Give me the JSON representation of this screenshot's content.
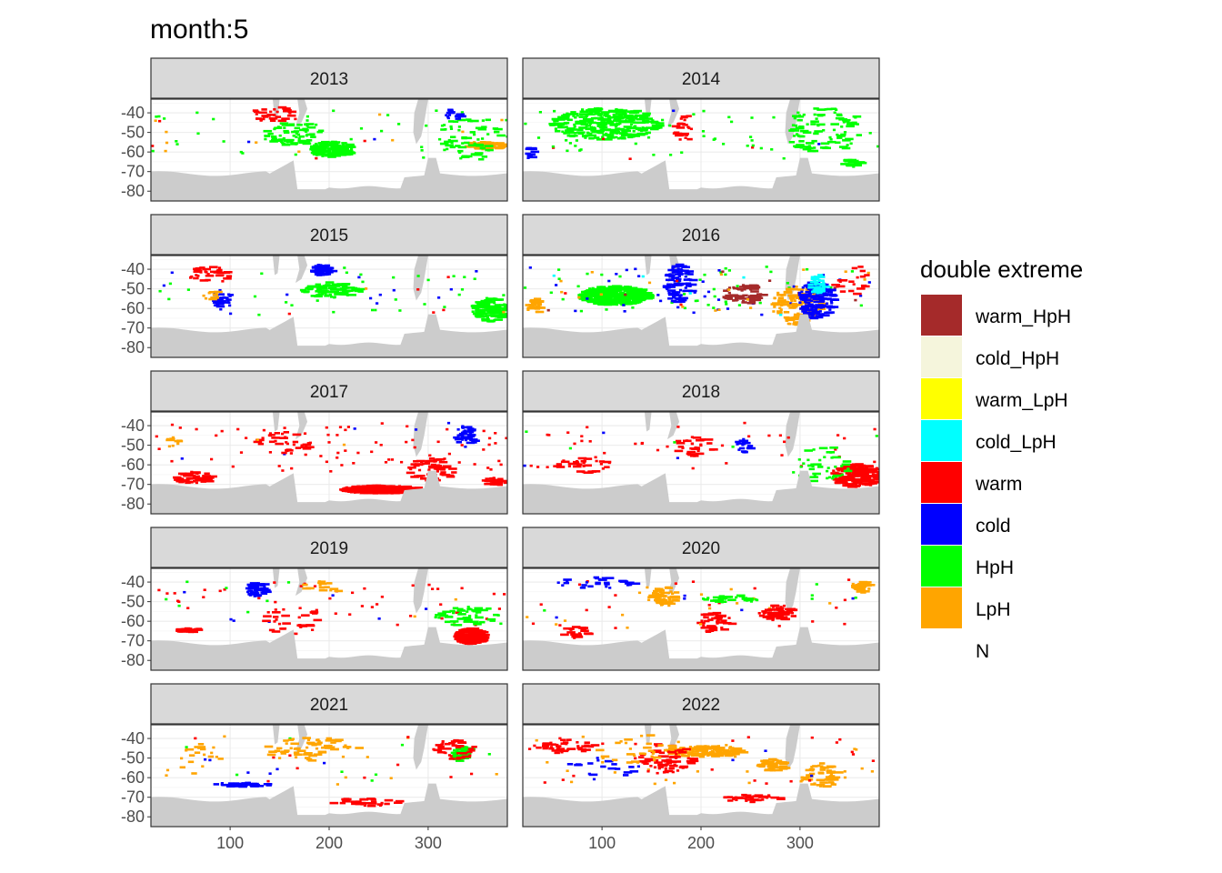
{
  "chart_data": {
    "type": "heatmap",
    "title": "month:5",
    "xlabel": "",
    "ylabel": "",
    "x_ticks": [
      100,
      200,
      300
    ],
    "y_ticks": [
      -40,
      -50,
      -60,
      -70,
      -80
    ],
    "y_tick_labels": [
      "-40",
      "-50",
      "-60",
      "-70",
      "-80"
    ],
    "xlim": [
      20,
      380
    ],
    "ylim": [
      -85,
      -33
    ],
    "grid": true,
    "legend_position": "right",
    "legend": {
      "title": "double extreme",
      "entries": [
        {
          "label": "warm_HpH",
          "color": "#A52A2A"
        },
        {
          "label": "cold_HpH",
          "color": "#F5F5DC"
        },
        {
          "label": "warm_LpH",
          "color": "#FFFF00"
        },
        {
          "label": "cold_LpH",
          "color": "#00FFFF"
        },
        {
          "label": "warm",
          "color": "#FF0000"
        },
        {
          "label": "cold",
          "color": "#0000FF"
        },
        {
          "label": "HpH",
          "color": "#00FF00"
        },
        {
          "label": "LpH",
          "color": "#FFA500"
        },
        {
          "label": "N",
          "color": "#FFFFFF"
        }
      ]
    },
    "land_color": "#CCCCCC",
    "panels": [
      {
        "year": "2013",
        "blobs": [
          {
            "cat": "HpH",
            "lon": 200,
            "lat": -58,
            "rx": 22,
            "ry": 4,
            "n": 140
          },
          {
            "cat": "HpH",
            "lon": 160,
            "lat": -50,
            "rx": 30,
            "ry": 6,
            "n": 70
          },
          {
            "cat": "LpH",
            "lon": 355,
            "lat": -56,
            "rx": 20,
            "ry": 2,
            "n": 70
          },
          {
            "cat": "warm",
            "lon": 140,
            "lat": -40,
            "rx": 20,
            "ry": 4,
            "n": 30
          },
          {
            "cat": "HpH",
            "lon": 340,
            "lat": -52,
            "rx": 30,
            "ry": 12,
            "n": 60
          },
          {
            "cat": "cold",
            "lon": 325,
            "lat": -40,
            "rx": 10,
            "ry": 3,
            "n": 15
          }
        ]
      },
      {
        "year": "2014",
        "blobs": [
          {
            "cat": "HpH",
            "lon": 100,
            "lat": -45,
            "rx": 55,
            "ry": 8,
            "n": 280
          },
          {
            "cat": "warm",
            "lon": 180,
            "lat": -48,
            "rx": 10,
            "ry": 8,
            "n": 25
          },
          {
            "cat": "HpH",
            "lon": 320,
            "lat": -48,
            "rx": 40,
            "ry": 12,
            "n": 90
          },
          {
            "cat": "cold",
            "lon": 25,
            "lat": -60,
            "rx": 4,
            "ry": 3,
            "n": 12
          },
          {
            "cat": "HpH",
            "lon": 350,
            "lat": -65,
            "rx": 10,
            "ry": 2,
            "n": 20
          }
        ]
      },
      {
        "year": "2015",
        "blobs": [
          {
            "cat": "cold",
            "lon": 190,
            "lat": -40,
            "rx": 10,
            "ry": 3,
            "n": 55
          },
          {
            "cat": "HpH",
            "lon": 200,
            "lat": -50,
            "rx": 30,
            "ry": 4,
            "n": 80
          },
          {
            "cat": "HpH",
            "lon": 360,
            "lat": -60,
            "rx": 18,
            "ry": 6,
            "n": 120
          },
          {
            "cat": "warm",
            "lon": 80,
            "lat": -42,
            "rx": 25,
            "ry": 4,
            "n": 35
          },
          {
            "cat": "cold",
            "lon": 90,
            "lat": -55,
            "rx": 10,
            "ry": 5,
            "n": 30
          },
          {
            "cat": "LpH",
            "lon": 80,
            "lat": -52,
            "rx": 10,
            "ry": 3,
            "n": 10
          }
        ]
      },
      {
        "year": "2016",
        "blobs": [
          {
            "cat": "HpH",
            "lon": 110,
            "lat": -53,
            "rx": 35,
            "ry": 5,
            "n": 320
          },
          {
            "cat": "cold",
            "lon": 175,
            "lat": -47,
            "rx": 14,
            "ry": 10,
            "n": 90
          },
          {
            "cat": "warm_HpH",
            "lon": 240,
            "lat": -52,
            "rx": 20,
            "ry": 5,
            "n": 55
          },
          {
            "cat": "LpH",
            "lon": 295,
            "lat": -58,
            "rx": 25,
            "ry": 10,
            "n": 130
          },
          {
            "cat": "cold",
            "lon": 315,
            "lat": -55,
            "rx": 18,
            "ry": 10,
            "n": 140
          },
          {
            "cat": "cold_LpH",
            "lon": 315,
            "lat": -47,
            "rx": 8,
            "ry": 5,
            "n": 35
          },
          {
            "cat": "LpH",
            "lon": 30,
            "lat": -58,
            "rx": 8,
            "ry": 4,
            "n": 30
          },
          {
            "cat": "warm",
            "lon": 350,
            "lat": -45,
            "rx": 20,
            "ry": 8,
            "n": 20
          }
        ]
      },
      {
        "year": "2017",
        "blobs": [
          {
            "cat": "warm",
            "lon": 250,
            "lat": -72,
            "rx": 40,
            "ry": 2,
            "n": 320
          },
          {
            "cat": "warm",
            "lon": 60,
            "lat": -66,
            "rx": 20,
            "ry": 3,
            "n": 60
          },
          {
            "cat": "warm",
            "lon": 300,
            "lat": -62,
            "rx": 25,
            "ry": 6,
            "n": 60
          },
          {
            "cat": "cold",
            "lon": 335,
            "lat": -45,
            "rx": 10,
            "ry": 6,
            "n": 40
          },
          {
            "cat": "warm",
            "lon": 150,
            "lat": -48,
            "rx": 30,
            "ry": 6,
            "n": 30
          },
          {
            "cat": "LpH",
            "lon": 40,
            "lat": -48,
            "rx": 6,
            "ry": 3,
            "n": 10
          },
          {
            "cat": "warm",
            "lon": 365,
            "lat": -68,
            "rx": 12,
            "ry": 2,
            "n": 30
          }
        ]
      },
      {
        "year": "2018",
        "blobs": [
          {
            "cat": "warm",
            "lon": 355,
            "lat": -65,
            "rx": 25,
            "ry": 6,
            "n": 200
          },
          {
            "cat": "cold",
            "lon": 240,
            "lat": -50,
            "rx": 8,
            "ry": 4,
            "n": 20
          },
          {
            "cat": "warm",
            "lon": 190,
            "lat": -50,
            "rx": 20,
            "ry": 5,
            "n": 35
          },
          {
            "cat": "HpH",
            "lon": 320,
            "lat": -60,
            "rx": 30,
            "ry": 10,
            "n": 40
          },
          {
            "cat": "warm",
            "lon": 80,
            "lat": -60,
            "rx": 30,
            "ry": 4,
            "n": 30
          }
        ]
      },
      {
        "year": "2019",
        "blobs": [
          {
            "cat": "warm",
            "lon": 340,
            "lat": -67,
            "rx": 15,
            "ry": 4,
            "n": 240
          },
          {
            "cat": "cold",
            "lon": 125,
            "lat": -43,
            "rx": 10,
            "ry": 4,
            "n": 45
          },
          {
            "cat": "warm",
            "lon": 55,
            "lat": -64,
            "rx": 15,
            "ry": 1,
            "n": 30
          },
          {
            "cat": "HpH",
            "lon": 340,
            "lat": -57,
            "rx": 35,
            "ry": 5,
            "n": 50
          },
          {
            "cat": "LpH",
            "lon": 190,
            "lat": -42,
            "rx": 20,
            "ry": 3,
            "n": 15
          },
          {
            "cat": "warm",
            "lon": 160,
            "lat": -60,
            "rx": 30,
            "ry": 8,
            "n": 30
          }
        ]
      },
      {
        "year": "2020",
        "blobs": [
          {
            "cat": "LpH",
            "lon": 160,
            "lat": -47,
            "rx": 15,
            "ry": 5,
            "n": 60
          },
          {
            "cat": "warm",
            "lon": 275,
            "lat": -55,
            "rx": 18,
            "ry": 4,
            "n": 70
          },
          {
            "cat": "warm",
            "lon": 210,
            "lat": -60,
            "rx": 20,
            "ry": 5,
            "n": 40
          },
          {
            "cat": "LpH",
            "lon": 360,
            "lat": -42,
            "rx": 10,
            "ry": 3,
            "n": 40
          },
          {
            "cat": "cold",
            "lon": 90,
            "lat": -40,
            "rx": 40,
            "ry": 3,
            "n": 30
          },
          {
            "cat": "warm",
            "lon": 70,
            "lat": -65,
            "rx": 15,
            "ry": 3,
            "n": 20
          },
          {
            "cat": "HpH",
            "lon": 230,
            "lat": -48,
            "rx": 30,
            "ry": 2,
            "n": 30
          }
        ]
      },
      {
        "year": "2021",
        "blobs": [
          {
            "cat": "HpH",
            "lon": 330,
            "lat": -47,
            "rx": 8,
            "ry": 4,
            "n": 60
          },
          {
            "cat": "warm",
            "lon": 325,
            "lat": -45,
            "rx": 20,
            "ry": 5,
            "n": 40
          },
          {
            "cat": "cold",
            "lon": 110,
            "lat": -63,
            "rx": 30,
            "ry": 1,
            "n": 40
          },
          {
            "cat": "LpH",
            "lon": 180,
            "lat": -45,
            "rx": 50,
            "ry": 6,
            "n": 60
          },
          {
            "cat": "warm",
            "lon": 230,
            "lat": -72,
            "rx": 40,
            "ry": 2,
            "n": 30
          },
          {
            "cat": "LpH",
            "lon": 70,
            "lat": -50,
            "rx": 25,
            "ry": 8,
            "n": 20
          }
        ]
      },
      {
        "year": "2022",
        "blobs": [
          {
            "cat": "LpH",
            "lon": 200,
            "lat": -46,
            "rx": 40,
            "ry": 3,
            "n": 130
          },
          {
            "cat": "LpH",
            "lon": 270,
            "lat": -53,
            "rx": 15,
            "ry": 3,
            "n": 60
          },
          {
            "cat": "LpH",
            "lon": 320,
            "lat": -58,
            "rx": 20,
            "ry": 6,
            "n": 50
          },
          {
            "cat": "warm",
            "lon": 160,
            "lat": -50,
            "rx": 30,
            "ry": 8,
            "n": 70
          },
          {
            "cat": "warm",
            "lon": 60,
            "lat": -43,
            "rx": 30,
            "ry": 4,
            "n": 40
          },
          {
            "cat": "warm",
            "lon": 250,
            "lat": -70,
            "rx": 30,
            "ry": 2,
            "n": 30
          },
          {
            "cat": "cold",
            "lon": 100,
            "lat": -55,
            "rx": 40,
            "ry": 6,
            "n": 20
          },
          {
            "cat": "LpH",
            "lon": 130,
            "lat": -45,
            "rx": 40,
            "ry": 8,
            "n": 25
          }
        ]
      }
    ]
  }
}
